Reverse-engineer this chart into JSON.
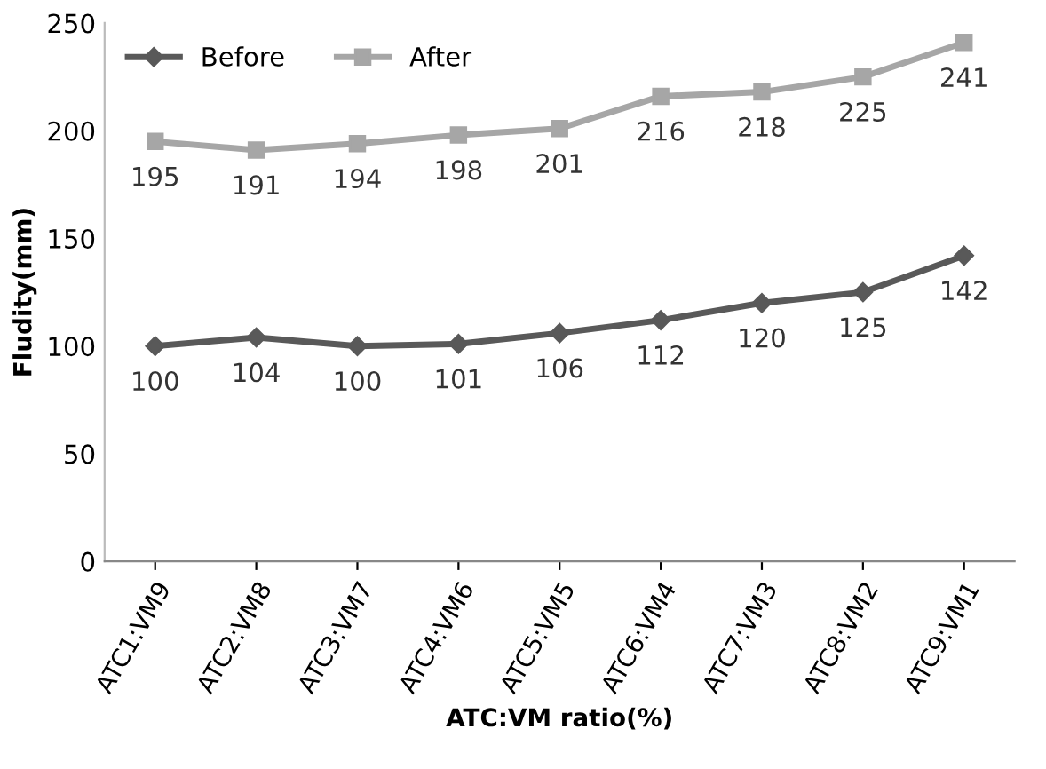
{
  "chart_data": {
    "type": "line",
    "xlabel": "ATC:VM ratio(%)",
    "ylabel": "Fludity(mm)",
    "categories": [
      "ATC1:VM9",
      "ATC2:VM8",
      "ATC3:VM7",
      "ATC4:VM6",
      "ATC5:VM5",
      "ATC6:VM4",
      "ATC7:VM3",
      "ATC8:VM2",
      "ATC9:VM1"
    ],
    "series": [
      {
        "name": "Before",
        "color": "#595959",
        "marker": "diamond",
        "values": [
          100,
          104,
          100,
          101,
          106,
          112,
          120,
          125,
          142
        ]
      },
      {
        "name": "After",
        "color": "#a6a6a6",
        "marker": "square",
        "values": [
          195,
          191,
          194,
          198,
          201,
          216,
          218,
          225,
          241
        ]
      }
    ],
    "ylim": [
      0,
      250
    ],
    "yticks": [
      0,
      50,
      100,
      150,
      200,
      250
    ],
    "grid": false,
    "legend": "top left",
    "data_labels": true
  }
}
